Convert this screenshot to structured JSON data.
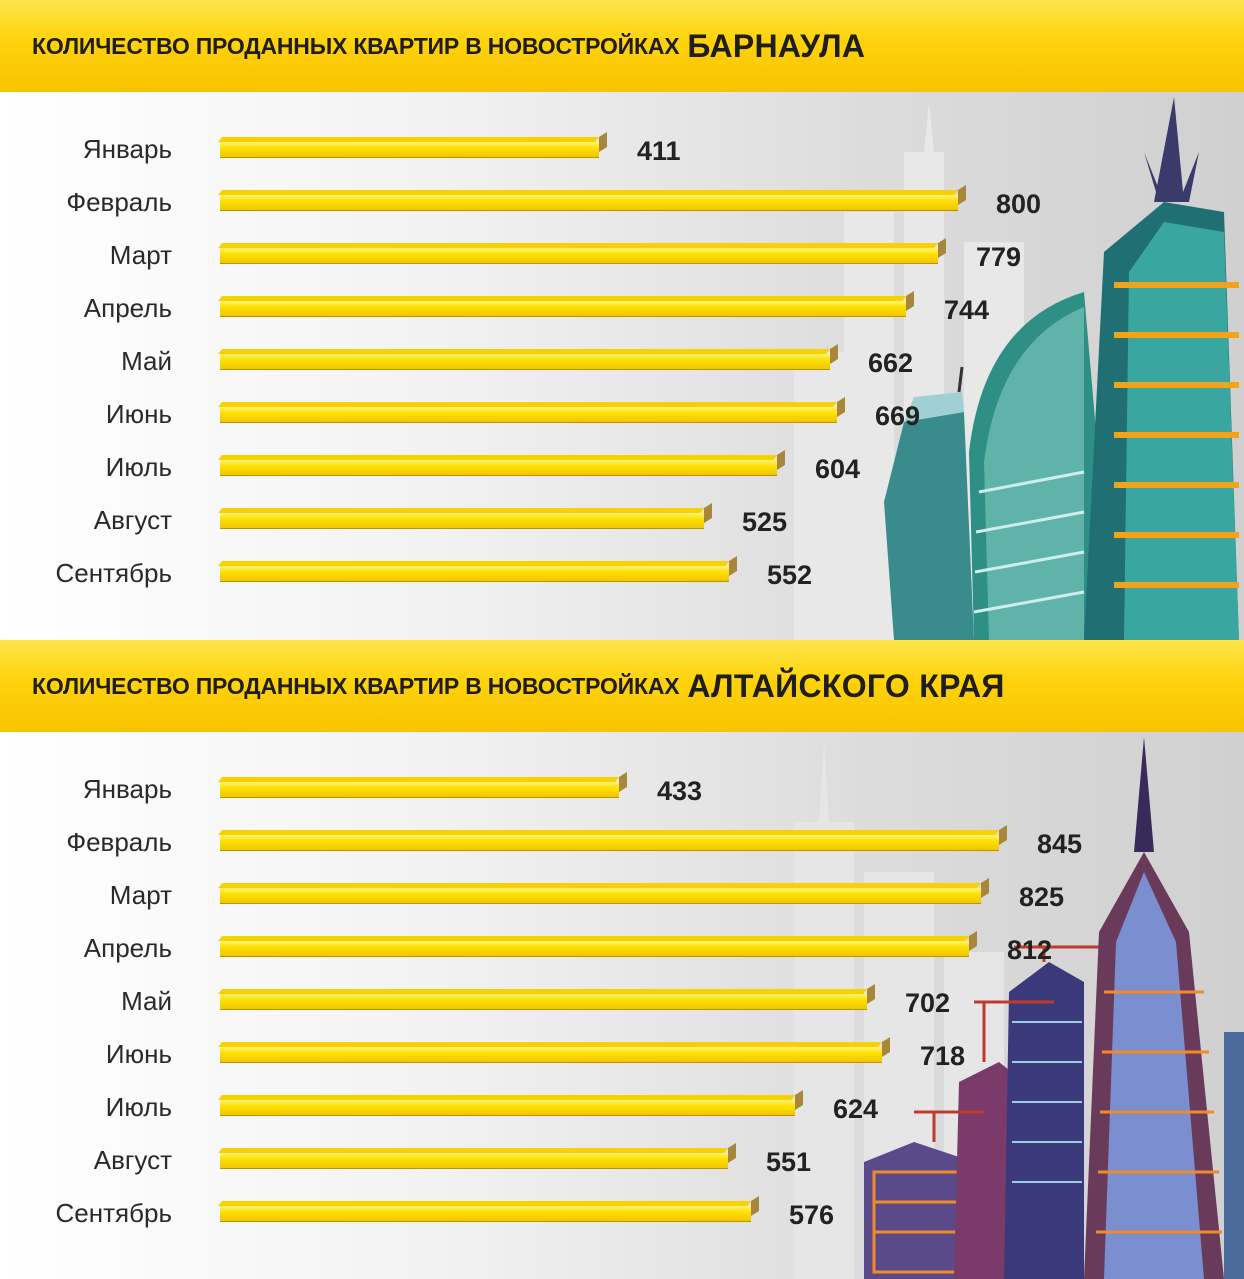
{
  "colors": {
    "banner": "#ffd20a",
    "bar": "#ffe000",
    "bar_side": "#a8873a",
    "text": "#222222"
  },
  "charts": [
    {
      "title_prefix": "КОЛИЧЕСТВО ПРОДАННЫХ КВАРТИР В НОВОСТРОЙКАХ",
      "title_highlight": "БАРНАУЛА",
      "illustration": "glass-skyscrapers-icon"
    },
    {
      "title_prefix": "КОЛИЧЕСТВО ПРОДАННЫХ КВАРТИР В НОВОСТРОЙКАХ",
      "title_highlight": "АЛТАЙСКОГО КРАЯ",
      "illustration": "construction-buildings-cranes-icon"
    }
  ],
  "chart_data": [
    {
      "type": "bar",
      "orientation": "horizontal",
      "title": "КОЛИЧЕСТВО ПРОДАННЫХ КВАРТИР В НОВОСТРОЙКАХ БАРНАУЛА",
      "categories": [
        "Январь",
        "Февраль",
        "Март",
        "Апрель",
        "Май",
        "Июнь",
        "Июль",
        "Август",
        "Сентябрь"
      ],
      "values": [
        411,
        800,
        779,
        744,
        662,
        669,
        604,
        525,
        552
      ],
      "labels": [
        "411",
        "800",
        "779",
        "744",
        "662",
        "669",
        "604",
        "525",
        "552"
      ]
    },
    {
      "type": "bar",
      "orientation": "horizontal",
      "title": "КОЛИЧЕСТВО ПРОДАННЫХ КВАРТИР В НОВОСТРОЙКАХ АЛТАЙСКОГО КРАЯ",
      "categories": [
        "Январь",
        "Февраль",
        "Март",
        "Апрель",
        "Май",
        "Июнь",
        "Июль",
        "Август",
        "Сентябрь"
      ],
      "values": [
        433,
        845,
        825,
        812,
        702,
        718,
        624,
        551,
        576
      ],
      "labels": [
        "433",
        "845",
        "825",
        "812",
        "702",
        "718",
        "624",
        "551",
        "576"
      ]
    }
  ]
}
